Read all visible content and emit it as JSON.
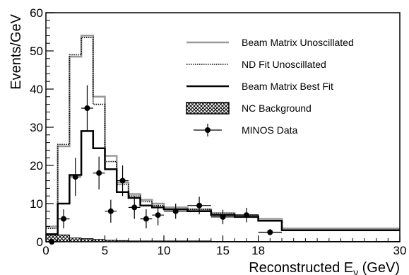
{
  "chart_data": {
    "type": "line",
    "xlabel": "Reconstructed E",
    "xlabel_subscript": "ν",
    "xlabel_unit": " (GeV)",
    "ylabel": "Events/GeV",
    "xlim": [
      0,
      30
    ],
    "ylim": [
      0,
      60
    ],
    "x_ticks": [
      0,
      5,
      10,
      15,
      18,
      30
    ],
    "y_ticks": [
      0,
      10,
      20,
      30,
      40,
      50,
      60
    ],
    "grid": false,
    "legend_position": "top-right",
    "bin_edges": [
      0,
      1,
      2,
      3,
      4,
      5,
      6,
      7,
      8,
      9,
      10,
      12,
      14,
      16,
      18,
      20,
      30
    ],
    "series": [
      {
        "name": "Beam Matrix Unoscillated",
        "kind": "step",
        "color": "#999999",
        "values": [
          4,
          25,
          48.5,
          54,
          38,
          22.5,
          15.5,
          12.5,
          11,
          10,
          9,
          8.5,
          7.5,
          7,
          6,
          3.5
        ]
      },
      {
        "name": "ND Fit Unoscillated",
        "kind": "step-dotted",
        "color": "#000000",
        "values": [
          3.5,
          25.5,
          49,
          53.5,
          36,
          21,
          15,
          12,
          10.5,
          9.5,
          8.5,
          8.5,
          7.5,
          7,
          5.5,
          3
        ]
      },
      {
        "name": "Beam Matrix Best Fit",
        "kind": "step",
        "color": "#000000",
        "values": [
          2,
          10,
          17.5,
          29,
          24.5,
          19,
          13,
          11.5,
          9.5,
          9,
          8.5,
          8,
          7,
          6.5,
          5.5,
          3
        ]
      },
      {
        "name": "NC Background",
        "kind": "hatched",
        "color": "#000000",
        "values": [
          1.8,
          1.8,
          1,
          0.8,
          0.6,
          0.4,
          0.3,
          0.2,
          0.2,
          0.2,
          0.2,
          0.2,
          0.1,
          0.1,
          0.1,
          0.1
        ]
      },
      {
        "name": "MINOS Data",
        "kind": "points",
        "color": "#000000",
        "points": [
          {
            "x": 0.5,
            "y": 0,
            "yerr": 0,
            "xerr": 0.5
          },
          {
            "x": 1.5,
            "y": 6,
            "yerr": 2.5,
            "xerr": 0.5
          },
          {
            "x": 2.5,
            "y": 17,
            "yerr": 5,
            "xerr": 0.5
          },
          {
            "x": 3.5,
            "y": 35,
            "yerr": 6,
            "xerr": 0.5
          },
          {
            "x": 4.5,
            "y": 18,
            "yerr": 4.3,
            "xerr": 0.5
          },
          {
            "x": 5.5,
            "y": 8,
            "yerr": 3,
            "xerr": 0.5
          },
          {
            "x": 6.5,
            "y": 16,
            "yerr": 4,
            "xerr": 0.5
          },
          {
            "x": 7.5,
            "y": 9,
            "yerr": 3,
            "xerr": 0.5
          },
          {
            "x": 8.5,
            "y": 6,
            "yerr": 2.5,
            "xerr": 0.5
          },
          {
            "x": 9.5,
            "y": 7,
            "yerr": 2.7,
            "xerr": 0.5
          },
          {
            "x": 11,
            "y": 8,
            "yerr": 2,
            "xerr": 1
          },
          {
            "x": 13,
            "y": 9.5,
            "yerr": 2.3,
            "xerr": 1
          },
          {
            "x": 15,
            "y": 6.5,
            "yerr": 1.9,
            "xerr": 1
          },
          {
            "x": 17,
            "y": 7,
            "yerr": 1.9,
            "xerr": 1
          },
          {
            "x": 19,
            "y": 2.5,
            "yerr": 0.8,
            "xerr": 1
          }
        ]
      }
    ]
  }
}
